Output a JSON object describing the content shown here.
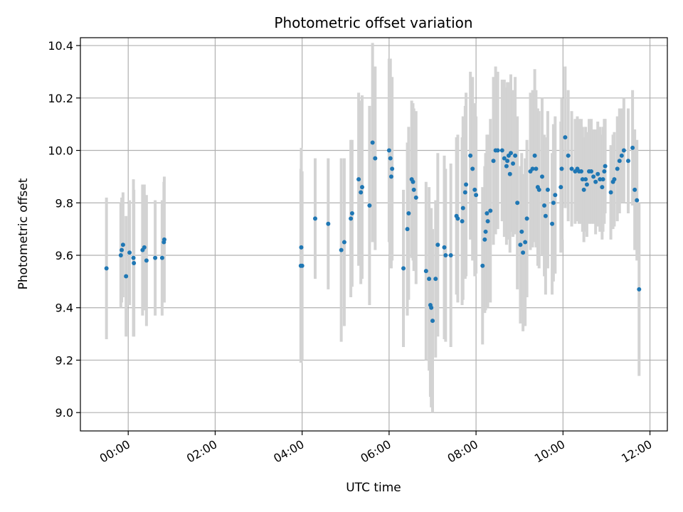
{
  "chart_data": {
    "type": "scatter",
    "title": "Photometric offset variation",
    "xlabel": "UTC time",
    "ylabel": "Photometric offset",
    "x_unit": "hours UTC",
    "xlim": [
      -1.1,
      12.4
    ],
    "ylim": [
      8.93,
      10.43
    ],
    "grid": true,
    "x_ticks": [
      0,
      2,
      4,
      6,
      8,
      10,
      12
    ],
    "x_tick_labels": [
      "00:00",
      "02:00",
      "04:00",
      "06:00",
      "08:00",
      "10:00",
      "12:00"
    ],
    "y_ticks": [
      9.0,
      9.2,
      9.4,
      9.6,
      9.8,
      10.0,
      10.2,
      10.4
    ],
    "y_tick_labels": [
      "9.0",
      "9.2",
      "9.4",
      "9.6",
      "9.8",
      "10.0",
      "10.2",
      "10.4"
    ],
    "marker_color": "#1f77b4",
    "errorbar_color": "#d3d3d3",
    "series": [
      {
        "points": [
          [
            -0.5,
            9.55,
            0.27
          ],
          [
            -0.17,
            9.6,
            0.2
          ],
          [
            -0.15,
            9.62,
            0.2
          ],
          [
            -0.12,
            9.64,
            0.2
          ],
          [
            -0.05,
            9.52,
            0.23
          ],
          [
            0.03,
            9.61,
            0.2
          ],
          [
            0.12,
            9.59,
            0.3
          ],
          [
            0.13,
            9.57,
            0.28
          ],
          [
            0.33,
            9.62,
            0.25
          ],
          [
            0.37,
            9.63,
            0.24
          ],
          [
            0.42,
            9.58,
            0.25
          ],
          [
            0.62,
            9.59,
            0.22
          ],
          [
            0.78,
            9.59,
            0.22
          ],
          [
            0.82,
            9.65,
            0.23
          ],
          [
            0.83,
            9.66,
            0.24
          ],
          [
            3.97,
            9.56,
            0.37
          ],
          [
            3.98,
            9.63,
            0.38
          ],
          [
            4.0,
            9.56,
            0.36
          ],
          [
            4.3,
            9.74,
            0.23
          ],
          [
            4.6,
            9.72,
            0.25
          ],
          [
            4.9,
            9.62,
            0.35
          ],
          [
            4.97,
            9.65,
            0.32
          ],
          [
            5.12,
            9.74,
            0.3
          ],
          [
            5.15,
            9.76,
            0.28
          ],
          [
            5.3,
            9.89,
            0.33
          ],
          [
            5.35,
            9.84,
            0.35
          ],
          [
            5.38,
            9.86,
            0.35
          ],
          [
            5.55,
            9.79,
            0.38
          ],
          [
            5.62,
            10.03,
            0.38
          ],
          [
            5.68,
            9.97,
            0.35
          ],
          [
            6.0,
            10.0,
            0.35
          ],
          [
            6.03,
            9.97,
            0.38
          ],
          [
            6.05,
            9.9,
            0.35
          ],
          [
            6.07,
            9.93,
            0.35
          ],
          [
            6.33,
            9.55,
            0.3
          ],
          [
            6.42,
            9.7,
            0.33
          ],
          [
            6.45,
            9.76,
            0.33
          ],
          [
            6.52,
            9.89,
            0.3
          ],
          [
            6.55,
            9.88,
            0.3
          ],
          [
            6.57,
            9.85,
            0.31
          ],
          [
            6.62,
            9.82,
            0.33
          ],
          [
            6.85,
            9.54,
            0.34
          ],
          [
            6.92,
            9.51,
            0.35
          ],
          [
            6.95,
            9.41,
            0.35
          ],
          [
            6.97,
            9.4,
            0.38
          ],
          [
            7.0,
            9.35,
            0.35
          ],
          [
            7.07,
            9.51,
            0.3
          ],
          [
            7.12,
            9.64,
            0.35
          ],
          [
            7.27,
            9.63,
            0.35
          ],
          [
            7.3,
            9.6,
            0.33
          ],
          [
            7.42,
            9.6,
            0.35
          ],
          [
            7.55,
            9.75,
            0.3
          ],
          [
            7.58,
            9.74,
            0.32
          ],
          [
            7.68,
            9.73,
            0.32
          ],
          [
            7.7,
            9.78,
            0.35
          ],
          [
            7.75,
            9.84,
            0.33
          ],
          [
            7.77,
            9.87,
            0.35
          ],
          [
            7.87,
            9.98,
            0.32
          ],
          [
            7.92,
            9.93,
            0.35
          ],
          [
            7.97,
            9.85,
            0.33
          ],
          [
            8.0,
            9.83,
            0.3
          ],
          [
            8.15,
            9.56,
            0.3
          ],
          [
            8.2,
            9.66,
            0.28
          ],
          [
            8.22,
            9.69,
            0.3
          ],
          [
            8.25,
            9.76,
            0.3
          ],
          [
            8.27,
            9.73,
            0.33
          ],
          [
            8.33,
            9.77,
            0.35
          ],
          [
            8.4,
            9.96,
            0.32
          ],
          [
            8.45,
            10.0,
            0.32
          ],
          [
            8.5,
            10.0,
            0.3
          ],
          [
            8.6,
            10.0,
            0.27
          ],
          [
            8.65,
            9.97,
            0.3
          ],
          [
            8.7,
            9.94,
            0.3
          ],
          [
            8.72,
            9.96,
            0.3
          ],
          [
            8.75,
            9.98,
            0.28
          ],
          [
            8.78,
            9.91,
            0.3
          ],
          [
            8.8,
            9.99,
            0.3
          ],
          [
            8.85,
            9.95,
            0.28
          ],
          [
            8.9,
            9.98,
            0.3
          ],
          [
            8.95,
            9.8,
            0.33
          ],
          [
            9.02,
            9.64,
            0.3
          ],
          [
            9.05,
            9.69,
            0.3
          ],
          [
            9.08,
            9.61,
            0.3
          ],
          [
            9.13,
            9.65,
            0.32
          ],
          [
            9.17,
            9.74,
            0.3
          ],
          [
            9.25,
            9.92,
            0.3
          ],
          [
            9.3,
            9.93,
            0.3
          ],
          [
            9.35,
            9.98,
            0.33
          ],
          [
            9.38,
            9.93,
            0.3
          ],
          [
            9.42,
            9.86,
            0.3
          ],
          [
            9.45,
            9.85,
            0.3
          ],
          [
            9.52,
            9.9,
            0.3
          ],
          [
            9.57,
            9.79,
            0.27
          ],
          [
            9.6,
            9.75,
            0.3
          ],
          [
            9.65,
            9.85,
            0.3
          ],
          [
            9.75,
            9.72,
            0.27
          ],
          [
            9.78,
            9.8,
            0.3
          ],
          [
            9.82,
            9.83,
            0.3
          ],
          [
            9.95,
            9.86,
            0.25
          ],
          [
            9.97,
            9.93,
            0.27
          ],
          [
            10.05,
            10.05,
            0.27
          ],
          [
            10.12,
            9.98,
            0.25
          ],
          [
            10.2,
            9.93,
            0.22
          ],
          [
            10.28,
            9.92,
            0.2
          ],
          [
            10.33,
            9.93,
            0.2
          ],
          [
            10.37,
            9.92,
            0.2
          ],
          [
            10.42,
            9.92,
            0.2
          ],
          [
            10.45,
            9.89,
            0.2
          ],
          [
            10.48,
            9.85,
            0.2
          ],
          [
            10.52,
            9.89,
            0.2
          ],
          [
            10.55,
            9.87,
            0.2
          ],
          [
            10.6,
            9.92,
            0.2
          ],
          [
            10.65,
            9.92,
            0.2
          ],
          [
            10.7,
            9.9,
            0.18
          ],
          [
            10.75,
            9.88,
            0.2
          ],
          [
            10.8,
            9.91,
            0.2
          ],
          [
            10.85,
            9.89,
            0.2
          ],
          [
            10.9,
            9.86,
            0.2
          ],
          [
            10.92,
            9.89,
            0.2
          ],
          [
            10.95,
            9.92,
            0.2
          ],
          [
            10.97,
            9.94,
            0.18
          ],
          [
            11.1,
            9.84,
            0.18
          ],
          [
            11.15,
            9.88,
            0.18
          ],
          [
            11.18,
            9.89,
            0.18
          ],
          [
            11.25,
            9.93,
            0.2
          ],
          [
            11.3,
            9.96,
            0.2
          ],
          [
            11.35,
            9.98,
            0.18
          ],
          [
            11.4,
            10.0,
            0.2
          ],
          [
            11.5,
            9.96,
            0.2
          ],
          [
            11.6,
            10.01,
            0.22
          ],
          [
            11.65,
            9.85,
            0.23
          ],
          [
            11.7,
            9.81,
            0.23
          ],
          [
            11.75,
            9.47,
            0.33
          ]
        ]
      }
    ]
  }
}
